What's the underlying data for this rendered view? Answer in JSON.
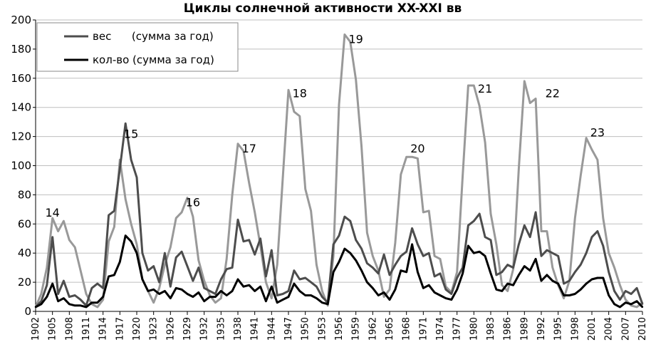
{
  "chart_data": {
    "type": "line",
    "title": "Циклы солнечной активности XX-XXI вв",
    "xlabel": "",
    "ylabel": "",
    "xlim": [
      1902,
      2010
    ],
    "ylim": [
      0,
      200
    ],
    "yticks": [
      0,
      20,
      40,
      60,
      80,
      100,
      120,
      140,
      160,
      180,
      200
    ],
    "xticks": [
      1902,
      1905,
      1908,
      1911,
      1914,
      1917,
      1920,
      1923,
      1926,
      1929,
      1932,
      1935,
      1938,
      1941,
      1944,
      1947,
      1950,
      1953,
      1956,
      1959,
      1962,
      1965,
      1968,
      1971,
      1974,
      1977,
      1980,
      1983,
      1986,
      1989,
      1992,
      1995,
      1998,
      2001,
      2004,
      2007,
      2010
    ],
    "grid": "horizontal",
    "legend": "top-left",
    "x": [
      1902,
      1903,
      1904,
      1905,
      1906,
      1907,
      1908,
      1909,
      1910,
      1911,
      1912,
      1913,
      1914,
      1915,
      1916,
      1917,
      1918,
      1919,
      1920,
      1921,
      1922,
      1923,
      1924,
      1925,
      1926,
      1927,
      1928,
      1929,
      1930,
      1931,
      1932,
      1933,
      1934,
      1935,
      1936,
      1937,
      1938,
      1939,
      1940,
      1941,
      1942,
      1943,
      1944,
      1945,
      1946,
      1947,
      1948,
      1949,
      1950,
      1951,
      1952,
      1953,
      1954,
      1955,
      1956,
      1957,
      1958,
      1959,
      1960,
      1961,
      1962,
      1963,
      1964,
      1965,
      1966,
      1967,
      1968,
      1969,
      1970,
      1971,
      1972,
      1973,
      1974,
      1975,
      1976,
      1977,
      1978,
      1979,
      1980,
      1981,
      1982,
      1983,
      1984,
      1985,
      1986,
      1987,
      1988,
      1989,
      1990,
      1991,
      1992,
      1993,
      1994,
      1995,
      1996,
      1997,
      1998,
      1999,
      2000,
      2001,
      2002,
      2003,
      2004,
      2005,
      2006,
      2007,
      2008,
      2009,
      2010
    ],
    "series": [
      {
        "name": "вес      (сумма за год)",
        "color": "#4d4d4d",
        "values": [
          3,
          7,
          18,
          51,
          12,
          21,
          10,
          11,
          8,
          4,
          16,
          19,
          16,
          66,
          69,
          98,
          129,
          104,
          92,
          40,
          28,
          31,
          20,
          40,
          17,
          37,
          41,
          31,
          21,
          30,
          16,
          14,
          12,
          22,
          29,
          30,
          63,
          48,
          49,
          39,
          50,
          24,
          42,
          11,
          12,
          14,
          28,
          22,
          23,
          20,
          17,
          10,
          6,
          46,
          52,
          65,
          62,
          49,
          43,
          33,
          30,
          26,
          39,
          25,
          32,
          38,
          41,
          57,
          46,
          38,
          40,
          24,
          26,
          15,
          12,
          23,
          30,
          59,
          62,
          67,
          51,
          49,
          25,
          27,
          32,
          30,
          46,
          59,
          51,
          68,
          38,
          42,
          40,
          38,
          19,
          21,
          27,
          32,
          40,
          51,
          55,
          45,
          27,
          14,
          8,
          14,
          12,
          16,
          5
        ]
      },
      {
        "name": "кол-во (сумма за год)",
        "color": "#000000",
        "values": [
          3,
          5,
          10,
          19,
          7,
          9,
          5,
          4,
          4,
          3,
          6,
          6,
          10,
          24,
          25,
          34,
          52,
          48,
          40,
          22,
          14,
          15,
          12,
          14,
          9,
          16,
          15,
          12,
          10,
          13,
          7,
          10,
          10,
          14,
          11,
          14,
          22,
          17,
          18,
          14,
          17,
          7,
          17,
          6,
          8,
          10,
          19,
          14,
          11,
          11,
          9,
          6,
          5,
          27,
          34,
          43,
          40,
          35,
          28,
          20,
          16,
          11,
          13,
          8,
          15,
          28,
          27,
          46,
          27,
          16,
          18,
          13,
          11,
          9,
          8,
          15,
          26,
          45,
          40,
          41,
          38,
          26,
          15,
          14,
          19,
          18,
          25,
          31,
          28,
          36,
          21,
          25,
          21,
          19,
          11,
          11,
          12,
          15,
          19,
          22,
          23,
          23,
          11,
          5,
          3,
          6,
          5,
          7,
          3
        ]
      },
      {
        "name": "",
        "color": "#999999",
        "values": [
          3,
          12,
          30,
          64,
          55,
          62,
          49,
          44,
          28,
          12,
          5,
          3,
          8,
          48,
          58,
          104,
          77,
          60,
          46,
          22,
          14,
          6,
          16,
          32,
          44,
          64,
          68,
          78,
          65,
          35,
          21,
          11,
          6,
          9,
          36,
          80,
          115,
          110,
          88,
          68,
          45,
          20,
          9,
          32,
          92,
          152,
          137,
          134,
          84,
          69,
          32,
          14,
          4,
          38,
          142,
          190,
          185,
          159,
          113,
          54,
          38,
          28,
          10,
          15,
          47,
          94,
          106,
          106,
          105,
          68,
          69,
          38,
          36,
          17,
          13,
          27,
          93,
          155,
          155,
          141,
          116,
          67,
          46,
          18,
          14,
          29,
          98,
          158,
          143,
          146,
          55,
          55,
          30,
          18,
          9,
          21,
          64,
          93,
          119,
          111,
          104,
          64,
          40,
          30,
          18,
          8,
          4,
          3,
          6
        ]
      }
    ],
    "annotations": [
      {
        "text": "14",
        "x": 1905,
        "y": 68
      },
      {
        "text": "15",
        "x": 1919,
        "y": 122
      },
      {
        "text": "16",
        "x": 1930,
        "y": 75
      },
      {
        "text": "17",
        "x": 1940,
        "y": 112
      },
      {
        "text": "18",
        "x": 1949,
        "y": 150
      },
      {
        "text": "19",
        "x": 1959,
        "y": 187
      },
      {
        "text": "20",
        "x": 1970,
        "y": 112
      },
      {
        "text": "21",
        "x": 1982,
        "y": 153
      },
      {
        "text": "22",
        "x": 1994,
        "y": 150
      },
      {
        "text": "23",
        "x": 2002,
        "y": 123
      }
    ]
  }
}
